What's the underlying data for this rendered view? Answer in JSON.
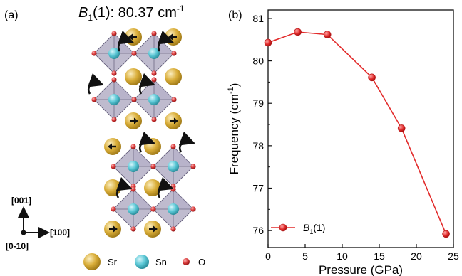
{
  "panel_a": {
    "label": "(a)",
    "title_symbol": "B",
    "title_subscript": "1",
    "title_rest": "(1): 80.37 cm",
    "title_exp": "-1",
    "axes": {
      "up": "[001]",
      "right": "[100]",
      "out": "[0-10]"
    },
    "species": [
      {
        "name": "Sr",
        "color": "#d9ad38"
      },
      {
        "name": "Sn",
        "color": "#5cc8d6"
      },
      {
        "name": "O",
        "color": "#d83a3a"
      }
    ]
  },
  "panel_b": {
    "label": "(b)",
    "legend": {
      "symbol": "B",
      "sub": "1",
      "rest": "(1)"
    }
  },
  "colors": {
    "series": "#e22b2b",
    "octahedra": "#8a83a6"
  },
  "chart_data": {
    "type": "line",
    "x": [
      0,
      4,
      8,
      14,
      18,
      24
    ],
    "y": [
      80.43,
      80.68,
      80.62,
      79.61,
      78.41,
      75.92
    ],
    "series": [
      {
        "name": "B1(1)",
        "values": [
          80.43,
          80.68,
          80.62,
          79.61,
          78.41,
          75.92
        ]
      }
    ],
    "xlabel": "Pressure (GPa)",
    "ylabel_main": "Frequency (cm",
    "ylabel_exp": "-1",
    "ylabel_end": ")",
    "xlim": [
      0,
      25
    ],
    "ylim": [
      75.6,
      81.2
    ],
    "xticks": [
      "0",
      "5",
      "10",
      "15",
      "20",
      "25"
    ],
    "yticks": [
      "76",
      "77",
      "78",
      "79",
      "80",
      "81"
    ],
    "grid": false,
    "legend_position": "bottom-left"
  }
}
